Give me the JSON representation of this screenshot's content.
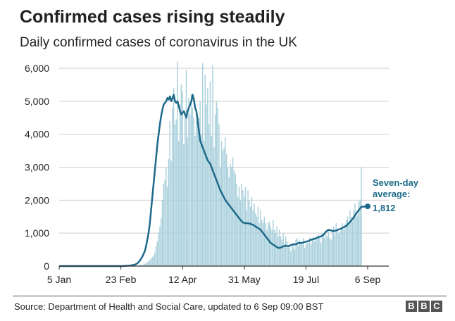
{
  "title": "Confirmed cases rising steadily",
  "subtitle": "Daily confirmed cases of coronavirus in the UK",
  "source": "Source: Department of Health and Social Care, updated to 6 Sep 09:00 BST",
  "logo": [
    "B",
    "B",
    "C"
  ],
  "colors": {
    "bars": "#a9d0dc",
    "line": "#1e6a8a",
    "annotation": "#1e6a8a",
    "grid": "#cccccc",
    "axis": "#333333"
  },
  "annotation": {
    "line1": "Seven-day",
    "line2": "average:",
    "value": "1,812"
  },
  "chart_data": {
    "type": "bar",
    "ylim": [
      0,
      6000
    ],
    "yticks": [
      0,
      1000,
      2000,
      3000,
      4000,
      5000,
      6000
    ],
    "ytick_labels": [
      "0",
      "1,000",
      "2,000",
      "3,000",
      "4,000",
      "5,000",
      "6,000"
    ],
    "xticks": [
      0,
      49,
      98,
      147,
      196,
      245
    ],
    "xtick_labels": [
      "5 Jan",
      "23 Feb",
      "12 Apr",
      "31 May",
      "19 Jul",
      "6 Sep"
    ],
    "grid": true,
    "series": [
      {
        "kind": "bar",
        "values": [
          0,
          0,
          0,
          0,
          0,
          0,
          0,
          0,
          0,
          0,
          0,
          0,
          0,
          0,
          0,
          0,
          0,
          0,
          0,
          0,
          0,
          0,
          0,
          0,
          0,
          0,
          2,
          0,
          0,
          0,
          0,
          0,
          0,
          0,
          0,
          1,
          0,
          0,
          0,
          0,
          0,
          0,
          0,
          0,
          0,
          0,
          0,
          0,
          0,
          0,
          0,
          0,
          0,
          0,
          0,
          3,
          12,
          13,
          4,
          10,
          0,
          4,
          18,
          10,
          40,
          55,
          0,
          50,
          70,
          95,
          120,
          150,
          180,
          220,
          280,
          320,
          410,
          600,
          750,
          1020,
          1200,
          1450,
          2000,
          2500,
          2600,
          3000,
          2400,
          3250,
          4400,
          3200,
          4800,
          5400,
          4300,
          4450,
          6200,
          3800,
          4900,
          5500,
          5300,
          3700,
          4500,
          5950,
          3900,
          5100,
          4600,
          5200,
          4800,
          4500,
          3950,
          4400,
          4600,
          4500,
          5000,
          4000,
          6150,
          3800,
          5800,
          4900,
          5400,
          4300,
          5600,
          3950,
          6100,
          3600,
          4600,
          5000,
          4800,
          4300,
          3000,
          3800,
          3500,
          3600,
          3900,
          3400,
          3000,
          2700,
          3100,
          3000,
          3300,
          2900,
          2800,
          2500,
          2100,
          2400,
          2000,
          2500,
          2300,
          2100,
          2400,
          1700,
          2300,
          2000,
          1800,
          2100,
          1700,
          1900,
          1600,
          1500,
          1800,
          1300,
          1700,
          1400,
          1300,
          1500,
          1300,
          1100,
          1300,
          1350,
          1200,
          1100,
          1400,
          1100,
          1000,
          1200,
          900,
          1100,
          900,
          800,
          1000,
          700,
          900,
          750,
          550,
          600,
          450,
          650,
          700,
          500,
          800,
          850,
          600,
          800,
          650,
          700,
          850,
          550,
          650,
          750,
          700,
          850,
          650,
          800,
          900,
          750,
          900,
          800,
          950,
          850,
          700,
          1000,
          1000,
          850,
          950,
          900,
          1050,
          850,
          800,
          1100,
          1200,
          950,
          1300,
          1100,
          1000,
          1050,
          1150,
          1300,
          1100,
          1250,
          1400,
          1500,
          1250,
          1700,
          1500,
          1350,
          1700,
          1900,
          1500,
          1550,
          1950,
          2000,
          3000
        ],
        "x_start": 0
      },
      {
        "kind": "line",
        "name": "Seven-day average",
        "points": [
          [
            0,
            0
          ],
          [
            50,
            0
          ],
          [
            52,
            5
          ],
          [
            56,
            15
          ],
          [
            60,
            40
          ],
          [
            62,
            80
          ],
          [
            64,
            160
          ],
          [
            66,
            280
          ],
          [
            68,
            450
          ],
          [
            69,
            600
          ],
          [
            70,
            800
          ],
          [
            71,
            1000
          ],
          [
            72,
            1300
          ],
          [
            73,
            1700
          ],
          [
            74,
            2100
          ],
          [
            75,
            2500
          ],
          [
            76,
            2900
          ],
          [
            77,
            3300
          ],
          [
            78,
            3700
          ],
          [
            79,
            4000
          ],
          [
            80,
            4300
          ],
          [
            81,
            4550
          ],
          [
            82,
            4750
          ],
          [
            83,
            4900
          ],
          [
            84,
            4950
          ],
          [
            85,
            5000
          ],
          [
            86,
            5100
          ],
          [
            87,
            5050
          ],
          [
            88,
            5150
          ],
          [
            89,
            5000
          ],
          [
            90,
            5100
          ],
          [
            91,
            5200
          ],
          [
            92,
            5000
          ],
          [
            93,
            4950
          ],
          [
            94,
            5000
          ],
          [
            95,
            4850
          ],
          [
            96,
            4700
          ],
          [
            97,
            4600
          ],
          [
            98,
            4650
          ],
          [
            99,
            4700
          ],
          [
            100,
            4600
          ],
          [
            101,
            4500
          ],
          [
            102,
            4700
          ],
          [
            103,
            4800
          ],
          [
            104,
            4900
          ],
          [
            105,
            5000
          ],
          [
            106,
            5200
          ],
          [
            107,
            5050
          ],
          [
            108,
            4800
          ],
          [
            109,
            4700
          ],
          [
            110,
            4400
          ],
          [
            111,
            4100
          ],
          [
            112,
            3800
          ],
          [
            114,
            3600
          ],
          [
            116,
            3400
          ],
          [
            118,
            3200
          ],
          [
            120,
            3100
          ],
          [
            122,
            2900
          ],
          [
            124,
            2700
          ],
          [
            126,
            2500
          ],
          [
            128,
            2300
          ],
          [
            130,
            2150
          ],
          [
            132,
            2000
          ],
          [
            134,
            1900
          ],
          [
            136,
            1800
          ],
          [
            138,
            1700
          ],
          [
            140,
            1600
          ],
          [
            142,
            1500
          ],
          [
            144,
            1400
          ],
          [
            146,
            1320
          ],
          [
            148,
            1300
          ],
          [
            150,
            1300
          ],
          [
            152,
            1280
          ],
          [
            154,
            1250
          ],
          [
            156,
            1200
          ],
          [
            158,
            1150
          ],
          [
            160,
            1100
          ],
          [
            162,
            1000
          ],
          [
            164,
            900
          ],
          [
            166,
            800
          ],
          [
            168,
            700
          ],
          [
            170,
            650
          ],
          [
            172,
            600
          ],
          [
            174,
            550
          ],
          [
            176,
            560
          ],
          [
            178,
            600
          ],
          [
            180,
            620
          ],
          [
            182,
            600
          ],
          [
            184,
            640
          ],
          [
            186,
            660
          ],
          [
            188,
            660
          ],
          [
            190,
            700
          ],
          [
            192,
            700
          ],
          [
            194,
            720
          ],
          [
            196,
            740
          ],
          [
            198,
            760
          ],
          [
            200,
            800
          ],
          [
            202,
            820
          ],
          [
            204,
            840
          ],
          [
            206,
            880
          ],
          [
            208,
            900
          ],
          [
            210,
            950
          ],
          [
            212,
            1050
          ],
          [
            214,
            1100
          ],
          [
            216,
            1080
          ],
          [
            218,
            1060
          ],
          [
            220,
            1080
          ],
          [
            222,
            1110
          ],
          [
            224,
            1140
          ],
          [
            226,
            1180
          ],
          [
            228,
            1220
          ],
          [
            230,
            1300
          ],
          [
            232,
            1380
          ],
          [
            234,
            1480
          ],
          [
            236,
            1600
          ],
          [
            238,
            1700
          ],
          [
            240,
            1800
          ],
          [
            245,
            1812
          ]
        ]
      }
    ]
  }
}
